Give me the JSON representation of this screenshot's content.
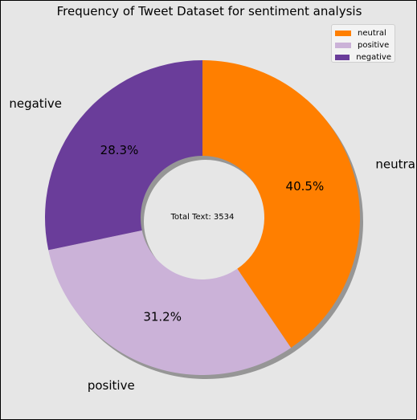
{
  "chart_data": {
    "type": "pie",
    "title": "Frequency of Tweet Dataset for sentiment analysis",
    "center_label": "Total Text: 3534",
    "labels": [
      "neutral",
      "positive",
      "negative"
    ],
    "percent_labels": [
      "40.5%",
      "31.2%",
      "28.3%"
    ],
    "values": [
      40.5,
      31.2,
      28.3
    ],
    "colors": [
      "#ff7f00",
      "#cbb2d8",
      "#6a3d9a"
    ],
    "start_angle_deg": 90,
    "direction": "clockwise",
    "donut": true,
    "shadow": true,
    "legend": {
      "position": "top-right",
      "entries": [
        "neutral",
        "positive",
        "negative"
      ]
    }
  },
  "background_color": "#e6e6e6"
}
